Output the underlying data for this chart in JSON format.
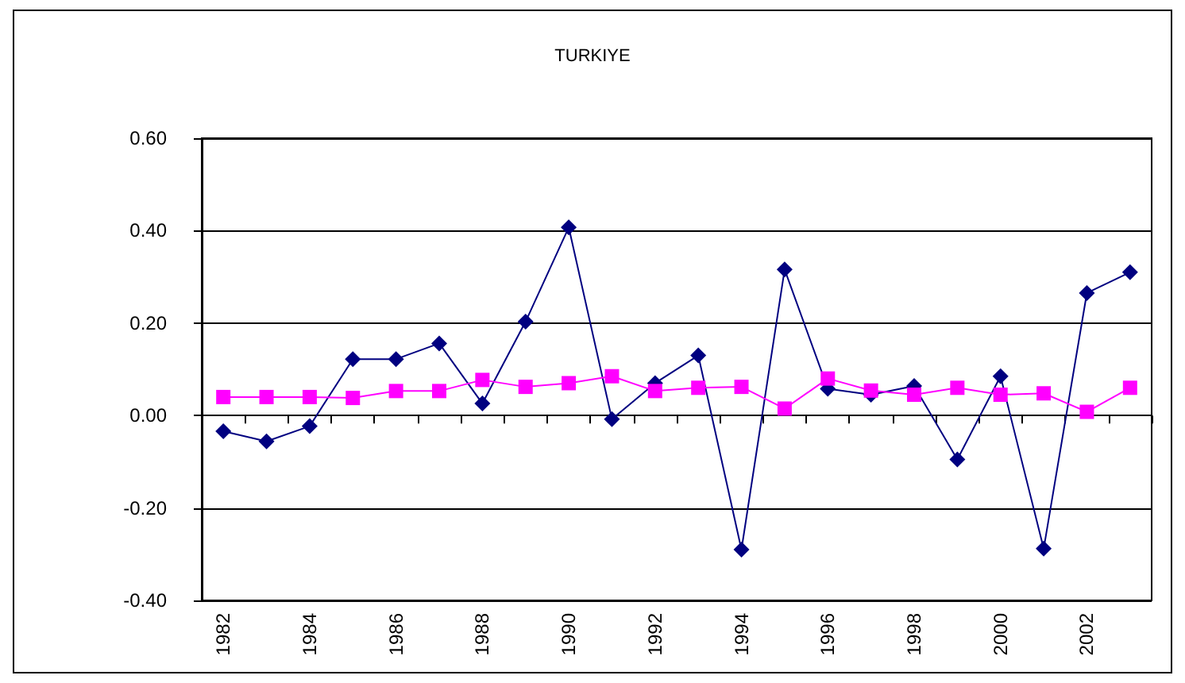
{
  "chart_data": {
    "type": "line",
    "title": "TURKIYE",
    "categories": [
      "1982",
      null,
      "1984",
      null,
      "1986",
      null,
      "1988",
      null,
      "1990",
      null,
      "1992",
      null,
      "1994",
      null,
      "1996",
      null,
      "1998",
      null,
      "2000",
      null,
      "2002",
      null
    ],
    "series": [
      {
        "color": "#000080",
        "marker": "diamond",
        "values": [
          -0.034,
          -0.056,
          -0.023,
          0.122,
          0.122,
          0.156,
          0.026,
          0.203,
          0.407,
          -0.008,
          0.07,
          0.13,
          -0.29,
          0.316,
          0.058,
          0.045,
          0.064,
          -0.095,
          0.085,
          -0.288,
          0.265,
          0.31
        ]
      },
      {
        "color": "#ff00ff",
        "marker": "square",
        "values": [
          0.04,
          0.04,
          0.04,
          0.038,
          0.053,
          0.053,
          0.077,
          0.062,
          0.07,
          0.085,
          0.053,
          0.06,
          0.062,
          0.015,
          0.08,
          0.054,
          0.045,
          0.06,
          0.045,
          0.048,
          0.008,
          0.06
        ]
      }
    ],
    "ylim": [
      -0.4,
      0.6
    ],
    "yticks": [
      {
        "value": -0.4,
        "label": "-0.40"
      },
      {
        "value": -0.2,
        "label": "-0.20"
      },
      {
        "value": 0,
        "label": "0.00"
      },
      {
        "value": 0.2,
        "label": "0.20"
      },
      {
        "value": 0.4,
        "label": "0.40"
      },
      {
        "value": 0.6,
        "label": "0.60"
      }
    ],
    "grid": "y"
  }
}
